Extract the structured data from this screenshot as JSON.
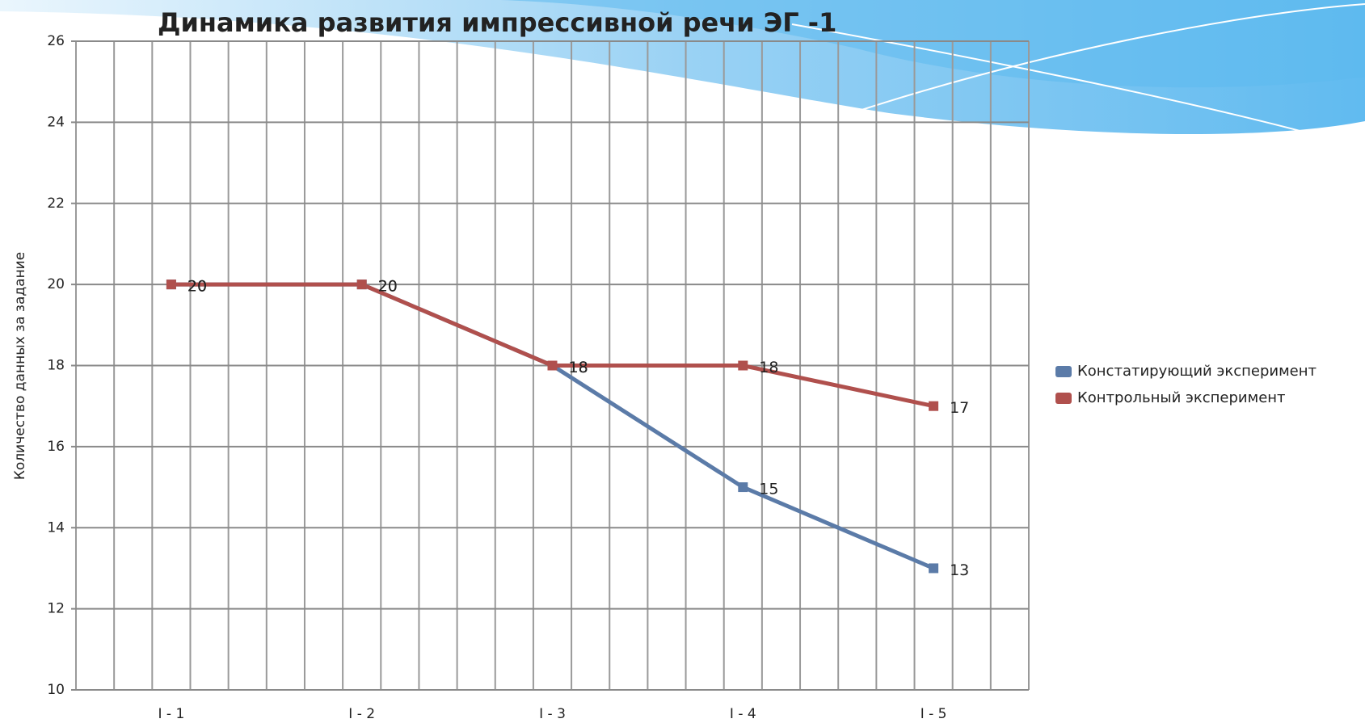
{
  "chart_data": {
    "type": "line",
    "title": "Динамика развития импрессивной речи  ЭГ -1",
    "y_label": "Количество данных за задание",
    "categories": [
      "I - 1",
      "I - 2",
      "I - 3",
      "I - 4",
      "I - 5"
    ],
    "series": [
      {
        "name": "Констатирующий эксперимент",
        "color": "#5b7ba8",
        "values": [
          20,
          20,
          18,
          15,
          13
        ]
      },
      {
        "name": "Контрольный эксперимент",
        "color": "#b0504d",
        "values": [
          20,
          20,
          18,
          18,
          17
        ]
      }
    ],
    "ylim": [
      10,
      26
    ],
    "yticks": [
      10,
      12,
      14,
      16,
      18,
      20,
      22,
      24,
      26
    ],
    "grid": true,
    "legend": "right"
  }
}
